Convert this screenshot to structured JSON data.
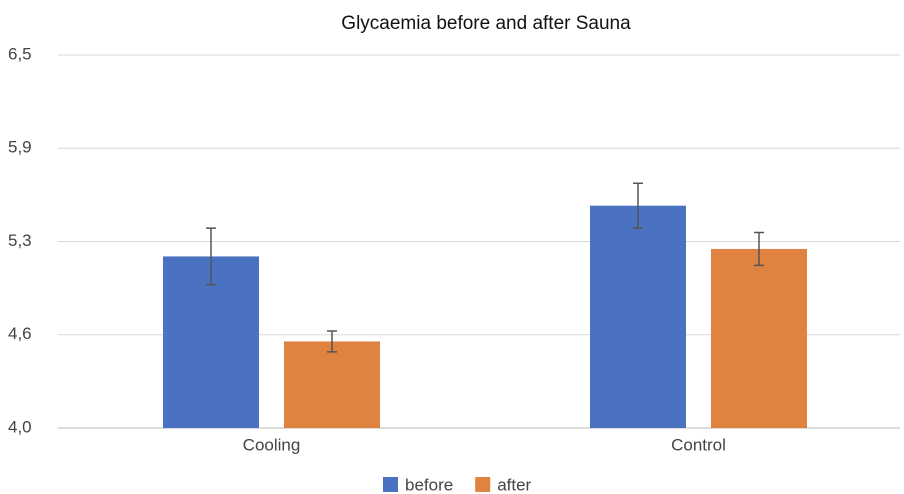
{
  "chart_data": {
    "type": "bar",
    "title": "Glycaemia before and after Sauna",
    "categories": [
      "Cooling",
      "Control"
    ],
    "series": [
      {
        "name": "before",
        "color": "#4a72c0",
        "values": [
          5.15,
          5.49
        ],
        "errors": [
          0.19,
          0.15
        ]
      },
      {
        "name": "after",
        "color": "#e08240",
        "values": [
          4.58,
          5.2
        ],
        "errors": [
          0.07,
          0.11
        ]
      }
    ],
    "ylim": [
      4.0,
      6.5
    ],
    "yticks": [
      {
        "value": 4.0,
        "label": "4,0"
      },
      {
        "value": 4.625,
        "label": "4,6"
      },
      {
        "value": 5.25,
        "label": "5,3"
      },
      {
        "value": 5.875,
        "label": "5,9"
      },
      {
        "value": 6.5,
        "label": "6,5"
      }
    ],
    "grid": true,
    "legend": "bottom"
  }
}
